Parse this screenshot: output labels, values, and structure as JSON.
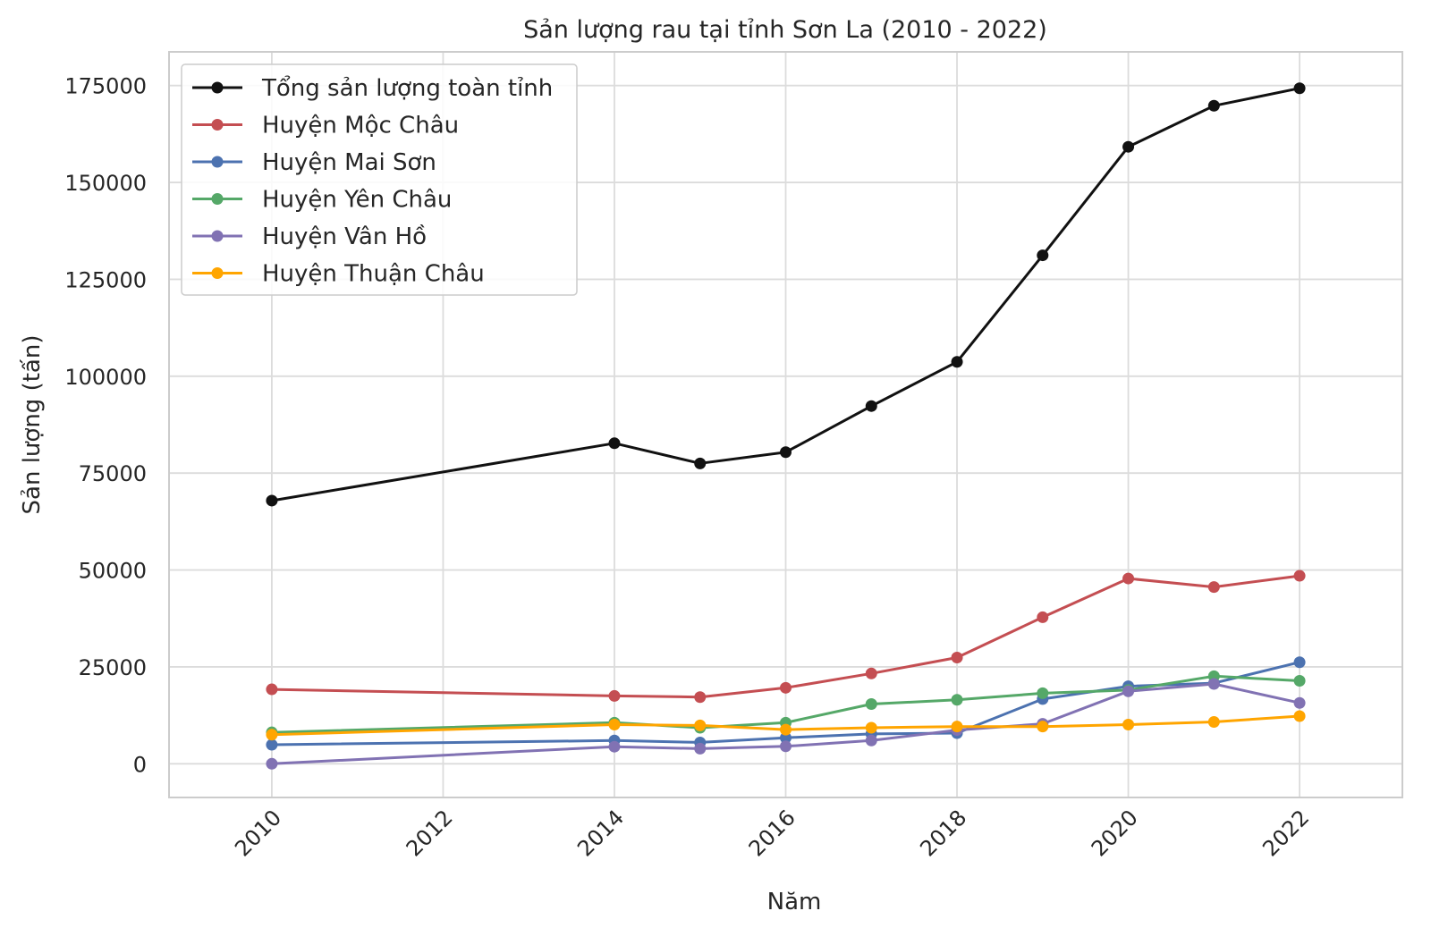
{
  "chart_data": {
    "type": "line",
    "title": "Sản lượng rau tại tỉnh Sơn La (2010 - 2022)",
    "xlabel": "Năm",
    "ylabel": "Sản lượng (tấn)",
    "x": [
      2010,
      2014,
      2015,
      2016,
      2017,
      2018,
      2019,
      2020,
      2021,
      2022
    ],
    "xlim": [
      2008.8,
      2023.2
    ],
    "ylim": [
      -8700,
      183700
    ],
    "xticks": [
      2010,
      2012,
      2014,
      2016,
      2018,
      2020,
      2022
    ],
    "yticks": [
      0,
      25000,
      50000,
      75000,
      100000,
      125000,
      150000,
      175000
    ],
    "grid": true,
    "legend_position": "top-left",
    "series": [
      {
        "name": "Tổng sản lượng toàn tỉnh",
        "color": "#111111",
        "values": [
          67900,
          82700,
          77500,
          80400,
          92300,
          103700,
          131200,
          159200,
          169800,
          174300
        ]
      },
      {
        "name": "Huyện Mộc Châu",
        "color": "#c44e52",
        "values": [
          19200,
          17500,
          17200,
          19600,
          23300,
          27400,
          37800,
          47800,
          45600,
          48500
        ]
      },
      {
        "name": "Huyện Mai Sơn",
        "color": "#4c72b0",
        "values": [
          4900,
          6000,
          5500,
          6700,
          7700,
          7900,
          16700,
          20000,
          20800,
          26200
        ]
      },
      {
        "name": "Huyện Yên Châu",
        "color": "#55a868",
        "values": [
          8100,
          10600,
          9300,
          10600,
          15400,
          16500,
          18200,
          19000,
          22600,
          21400
        ]
      },
      {
        "name": "Huyện Vân Hồ",
        "color": "#8172b3",
        "values": [
          0,
          4400,
          3900,
          4500,
          6000,
          8700,
          10300,
          18700,
          20600,
          15700
        ]
      },
      {
        "name": "Huyện Thuận Châu",
        "color": "#ffa500",
        "values": [
          7500,
          10100,
          9900,
          8800,
          9300,
          9600,
          9600,
          10100,
          10800,
          12300
        ]
      }
    ]
  }
}
